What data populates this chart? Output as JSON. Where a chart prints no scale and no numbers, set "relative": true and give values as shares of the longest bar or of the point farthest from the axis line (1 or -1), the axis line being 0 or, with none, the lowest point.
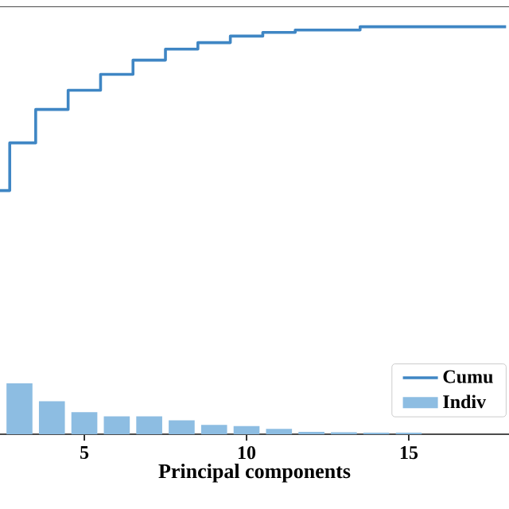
{
  "chart_data": {
    "type": "bar",
    "xlabel": "Principal components",
    "relative": true,
    "xlim": [
      2.4,
      18.09
    ],
    "xticks": [
      5,
      10,
      15
    ],
    "legend": "bottom right",
    "series": [
      {
        "name": "Cumu",
        "type": "step",
        "color": "#3f86c4",
        "x": [
          2.4,
          3,
          4,
          5,
          6,
          7,
          8,
          9,
          10,
          11,
          12,
          13,
          14,
          15,
          16,
          17,
          18
        ],
        "values": [
          0.598,
          0.715,
          0.797,
          0.844,
          0.883,
          0.918,
          0.945,
          0.961,
          0.977,
          0.986,
          0.992,
          0.992,
          1,
          1,
          1,
          1,
          1
        ]
      },
      {
        "name": "Indiv",
        "color": "#8dbde2",
        "x": [
          3,
          4,
          5,
          6,
          7,
          8,
          9,
          10,
          11,
          12,
          13,
          14,
          15
        ],
        "values": [
          0.125,
          0.081,
          0.054,
          0.044,
          0.044,
          0.034,
          0.023,
          0.02,
          0.013,
          0.006,
          0.005,
          0.004,
          0.004
        ]
      }
    ]
  }
}
